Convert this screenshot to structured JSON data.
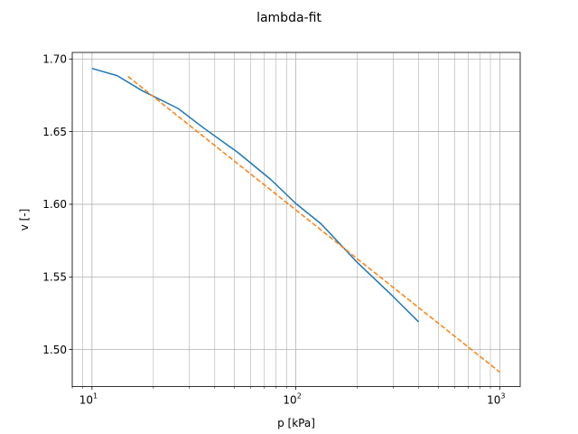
{
  "chart_data": {
    "type": "line",
    "title": "lambda-fit",
    "xlabel": "p [kPa]",
    "ylabel": "v [-]",
    "xscale": "log",
    "xlim": [
      8,
      1260
    ],
    "ylim": [
      1.4745,
      1.7045
    ],
    "grid": "both major and minor (x), major (y)",
    "xticks": [
      {
        "value": 10,
        "base": "10",
        "exp": "1"
      },
      {
        "value": 100,
        "base": "10",
        "exp": "2"
      },
      {
        "value": 1000,
        "base": "10",
        "exp": "3"
      }
    ],
    "yticks": [
      {
        "value": 1.5,
        "label": "1.50"
      },
      {
        "value": 1.55,
        "label": "1.55"
      },
      {
        "value": 1.6,
        "label": "1.60"
      },
      {
        "value": 1.65,
        "label": "1.65"
      },
      {
        "value": 1.7,
        "label": "1.70"
      }
    ],
    "series": [
      {
        "color": "#1f77b4",
        "style": "solid",
        "x": [
          10,
          13.3,
          17.7,
          26.4,
          35.3,
          52.1,
          75.4,
          100,
          133,
          200,
          300,
          400
        ],
        "y": [
          1.6935,
          1.6885,
          1.678,
          1.666,
          1.6525,
          1.6355,
          1.617,
          1.6005,
          1.5865,
          1.56,
          1.5365,
          1.519
        ]
      },
      {
        "color": "#ff7f0e",
        "style": "dashed",
        "x": [
          15,
          1000
        ],
        "y": [
          1.688,
          1.4845
        ]
      }
    ]
  }
}
